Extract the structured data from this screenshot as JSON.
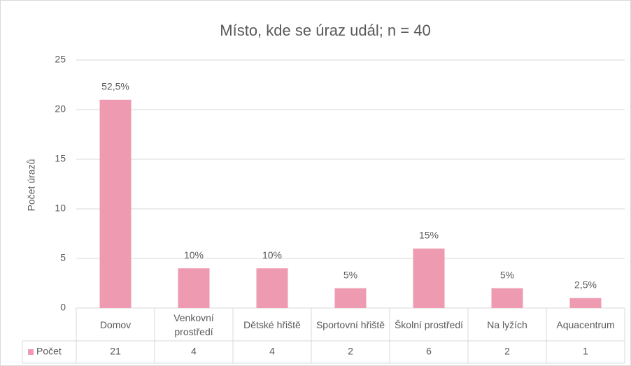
{
  "chart_data": {
    "type": "bar",
    "title": "Místo, kde se úraz udál; n = 40",
    "y_label": "Počet úrazů",
    "categories": [
      "Domov",
      "Venkovní prostředí",
      "Dětské hřiště",
      "Sportovní hřiště",
      "Školní prostředí",
      "Na lyžích",
      "Aquacentrum"
    ],
    "series": [
      {
        "name": "Počet",
        "color": "#ee9bb1",
        "values": [
          21,
          4,
          4,
          2,
          6,
          2,
          1
        ]
      }
    ],
    "percent_labels": [
      "52,5%",
      "10%",
      "10%",
      "5%",
      "15%",
      "5%",
      "2,5%"
    ],
    "ylim": [
      0,
      25
    ],
    "yticks": [
      0,
      5,
      10,
      15,
      20,
      25
    ],
    "grid": true,
    "data_table": true
  }
}
